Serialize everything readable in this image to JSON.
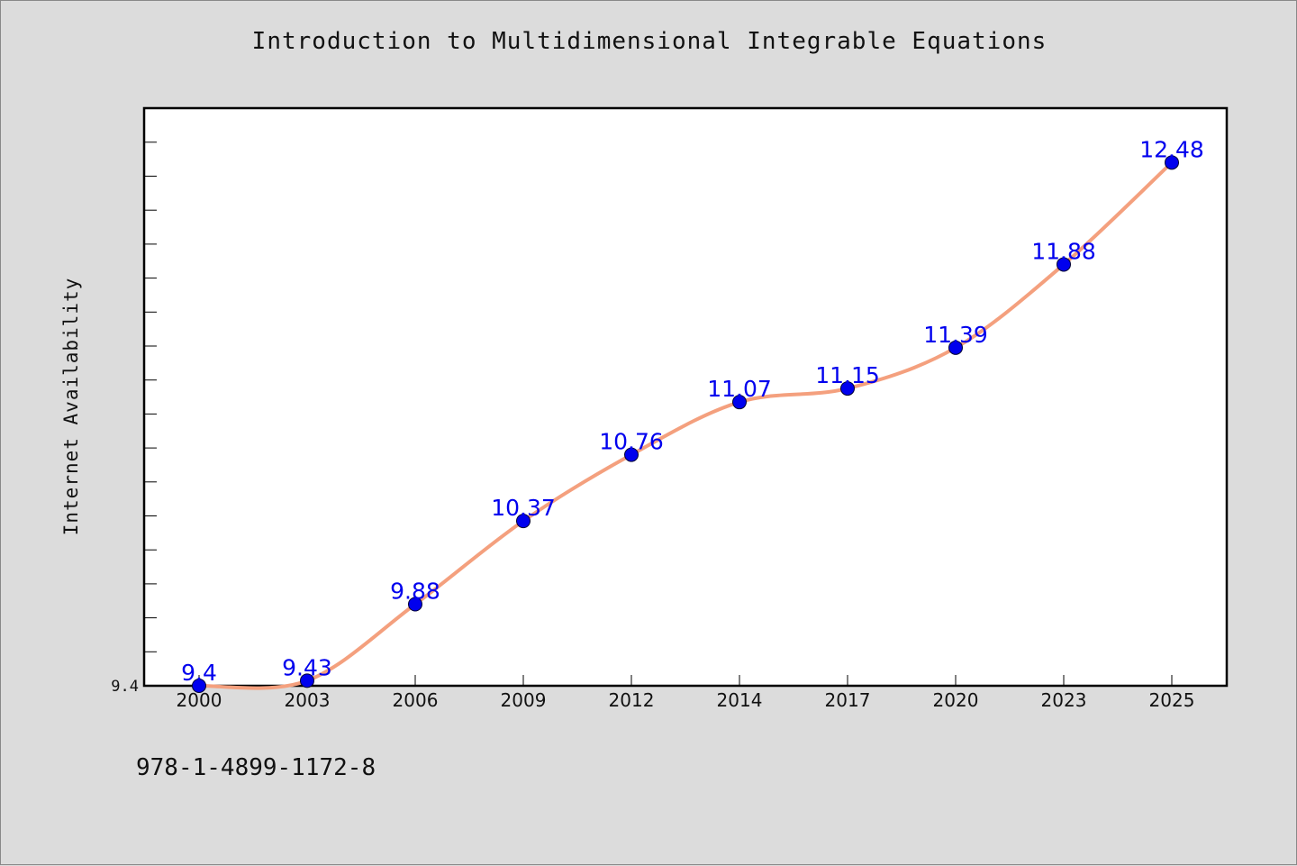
{
  "chart_data": {
    "type": "line",
    "title": "Introduction to Multidimensional Integrable Equations",
    "xlabel": "",
    "ylabel": "Internet Availability",
    "categories": [
      "2000",
      "2003",
      "2006",
      "2009",
      "2012",
      "2014",
      "2017",
      "2020",
      "2023",
      "2025"
    ],
    "series": [
      {
        "values": [
          9.4,
          9.43,
          9.88,
          10.37,
          10.76,
          11.07,
          11.15,
          11.39,
          11.88,
          12.48
        ],
        "data_labels": [
          "9.4",
          "9.43",
          "9.88",
          "10.37",
          "10.76",
          "11.07",
          "11.15",
          "11.39",
          "11.88",
          "12.48"
        ]
      }
    ],
    "y_tick_labels": [
      "9.4"
    ],
    "ylim": [
      9.4,
      12.8
    ],
    "grid": false,
    "colors": {
      "line": "#f4a07e",
      "marker": "#0000ee",
      "label": "#0000ee"
    }
  },
  "footer": {
    "isbn": "978-1-4899-1172-8"
  }
}
